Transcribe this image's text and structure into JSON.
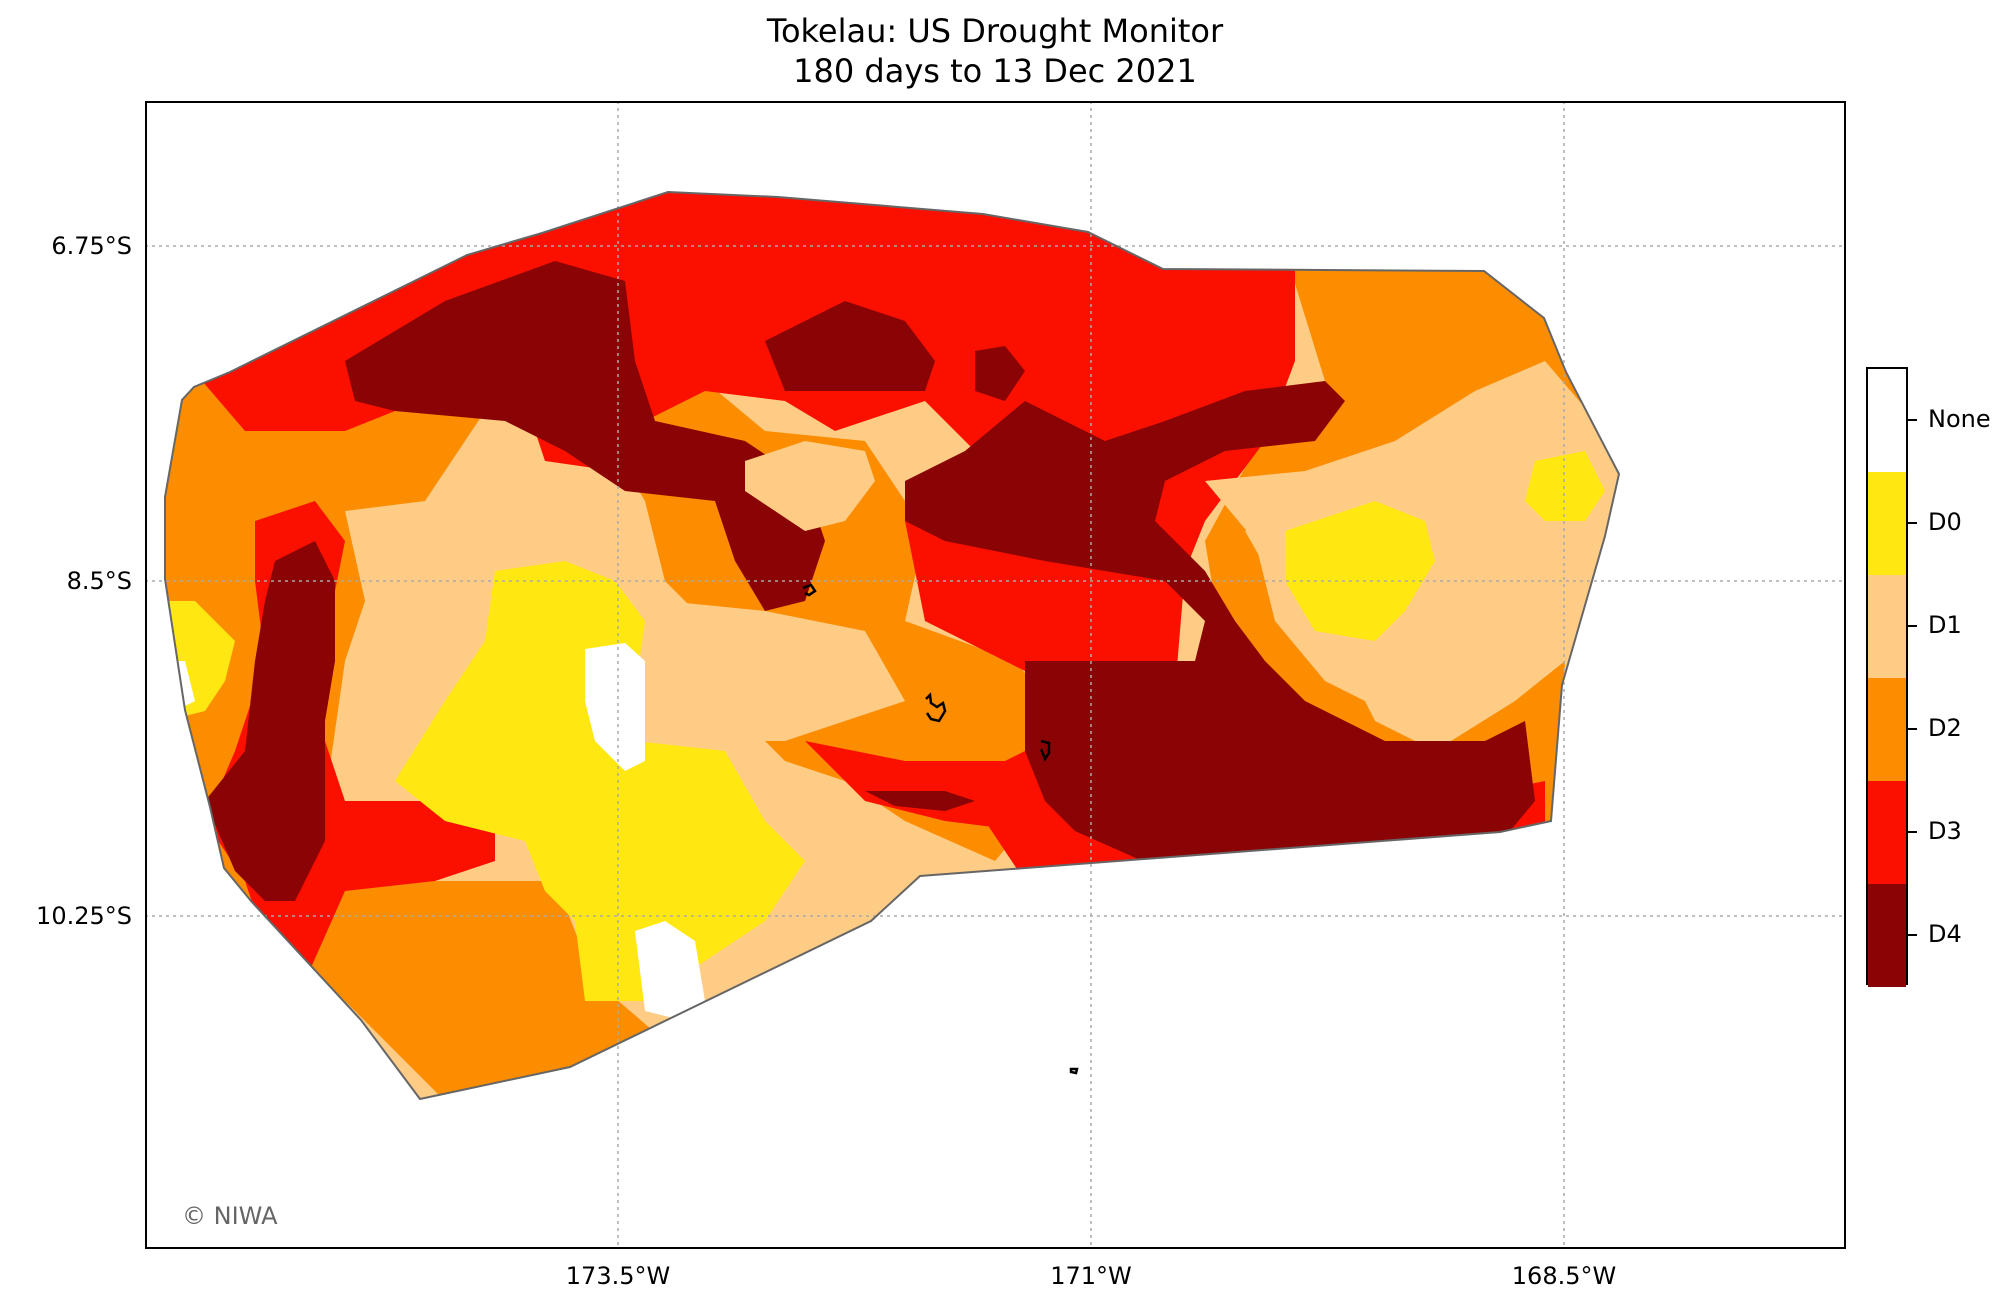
{
  "title": {
    "line1": "Tokelau: US Drought Monitor",
    "line2": "180 days to 13 Dec 2021"
  },
  "axes": {
    "y_ticks": [
      "6.75°S",
      "8.5°S",
      "10.25°S"
    ],
    "x_ticks": [
      "173.5°W",
      "171°W",
      "168.5°W"
    ]
  },
  "credit": "© NIWA",
  "legend": {
    "categories": [
      {
        "label": "None",
        "color": "#ffffff"
      },
      {
        "label": "D0",
        "color": "#ffe812"
      },
      {
        "label": "D1",
        "color": "#fecc85"
      },
      {
        "label": "D2",
        "color": "#fc8c00"
      },
      {
        "label": "D3",
        "color": "#fb1000"
      },
      {
        "label": "D4",
        "color": "#8a0405"
      }
    ]
  },
  "colors": {
    "gridline": "#aaaaaa",
    "boundary": "#666666",
    "coast": "#000000"
  }
}
